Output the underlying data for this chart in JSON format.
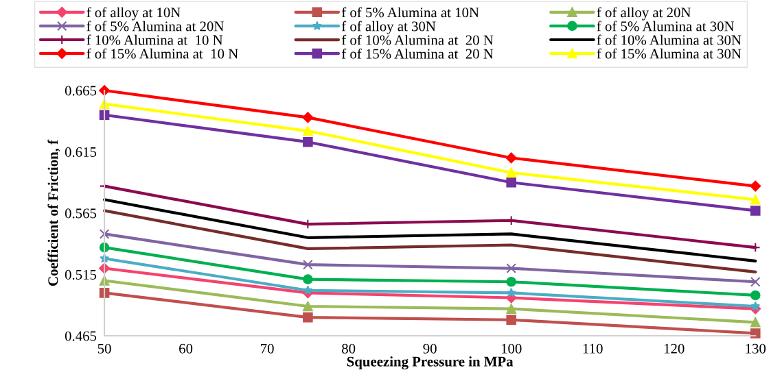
{
  "chart_data": {
    "type": "line",
    "xlabel": "Squeezing Pressure in MPa",
    "ylabel": "Coefficient of Friction, f",
    "x": [
      50,
      75,
      100,
      130
    ],
    "xlim": [
      50,
      130
    ],
    "xticks": [
      50,
      60,
      70,
      80,
      90,
      100,
      110,
      120,
      130
    ],
    "ylim": [
      0.465,
      0.665
    ],
    "yticks": [
      0.465,
      0.515,
      0.565,
      0.615,
      0.665
    ],
    "grid": false,
    "legend": "top",
    "series": [
      {
        "name": "f of alloy at 10N",
        "color": "#f4436f",
        "marker": "diamond",
        "values": [
          0.52,
          0.5,
          0.496,
          0.487
        ]
      },
      {
        "name": "f of 5% Alumina at 10N",
        "color": "#c0504d",
        "marker": "square",
        "values": [
          0.5,
          0.48,
          0.478,
          0.467
        ]
      },
      {
        "name": "f of alloy at 20N",
        "color": "#9bbb59",
        "marker": "triangle",
        "values": [
          0.51,
          0.489,
          0.487,
          0.476
        ]
      },
      {
        "name": "f of 5% Alumina at 20N",
        "color": "#8064a2",
        "marker": "cross",
        "values": [
          0.548,
          0.523,
          0.52,
          0.509
        ]
      },
      {
        "name": "f of alloy at 30N",
        "color": "#4bacc6",
        "marker": "star",
        "values": [
          0.528,
          0.502,
          0.5,
          0.489
        ]
      },
      {
        "name": "f of 5% Alumina at 30N",
        "color": "#00b050",
        "marker": "circle",
        "values": [
          0.537,
          0.511,
          0.509,
          0.498
        ]
      },
      {
        "name": "f 10% Alumina at  10 N",
        "color": "#8b0a50",
        "marker": "plus",
        "values": [
          0.587,
          0.556,
          0.559,
          0.537
        ]
      },
      {
        "name": "f of 10% Alumina at  20 N",
        "color": "#772c2a",
        "marker": "none",
        "values": [
          0.567,
          0.536,
          0.539,
          0.517
        ]
      },
      {
        "name": "f of 10% Alumina at 30N",
        "color": "#000000",
        "marker": "none",
        "values": [
          0.576,
          0.545,
          0.548,
          0.526
        ]
      },
      {
        "name": "f of 15% Alumina at  10 N",
        "color": "#ff0000",
        "marker": "diamond",
        "values": [
          0.665,
          0.643,
          0.61,
          0.587
        ]
      },
      {
        "name": "f of 15% Alumina at  20 N",
        "color": "#7030a0",
        "marker": "square",
        "values": [
          0.645,
          0.623,
          0.59,
          0.567
        ]
      },
      {
        "name": "f of 15% Alumina at 30N",
        "color": "#ffff00",
        "marker": "triangle",
        "values": [
          0.654,
          0.632,
          0.598,
          0.576
        ]
      }
    ]
  }
}
